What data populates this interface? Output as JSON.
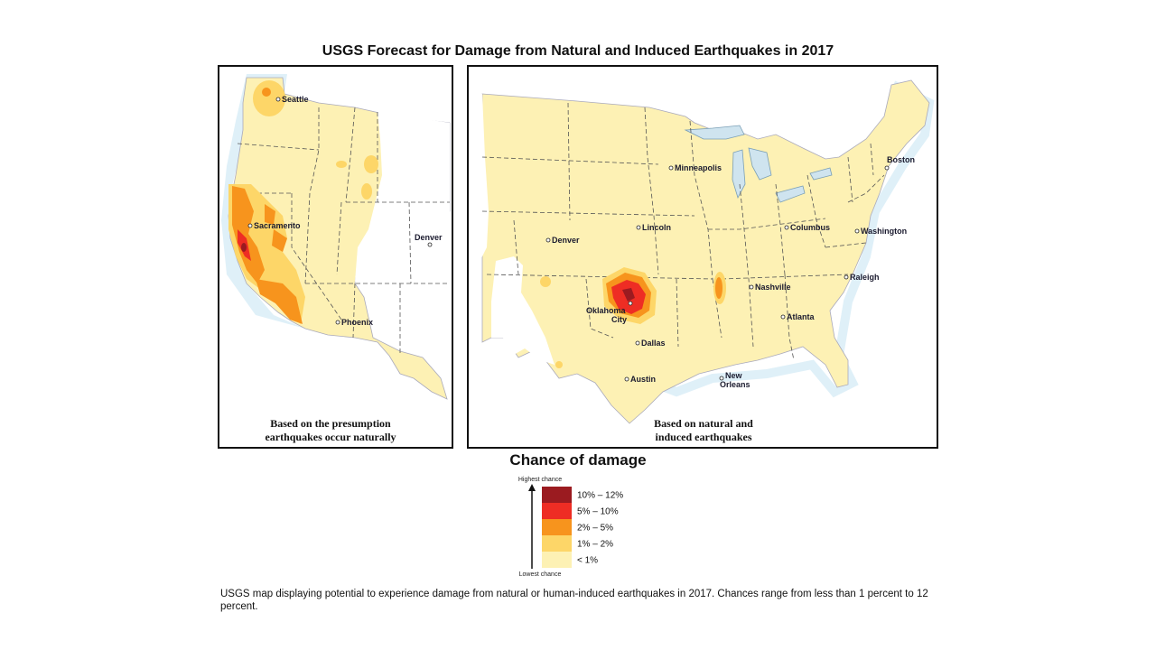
{
  "title": "USGS Forecast for Damage from Natural and Induced Earthquakes in 2017",
  "west_map": {
    "caption_line1": "Based on the presumption",
    "caption_line2": "earthquakes occur naturally",
    "cities": {
      "seattle": "Seattle",
      "sacramento": "Sacramento",
      "denver": "Denver",
      "phoenix": "Phoenix"
    }
  },
  "east_map": {
    "caption_line1": "Based on natural and",
    "caption_line2": "induced earthquakes",
    "cities": {
      "minneapolis": "Minneapolis",
      "boston": "Boston",
      "lincoln": "Lincoln",
      "columbus": "Columbus",
      "denver": "Denver",
      "washington": "Washington",
      "raleigh": "Raleigh",
      "nashville": "Nashville",
      "oklahoma_city_1": "Oklahoma",
      "oklahoma_city_2": "City",
      "atlanta": "Atlanta",
      "dallas": "Dallas",
      "austin": "Austin",
      "new_orleans_1": "New",
      "new_orleans_2": "Orleans"
    }
  },
  "legend": {
    "title": "Chance of damage",
    "highest": "Highest chance",
    "lowest": "Lowest chance",
    "classes": [
      {
        "label": "10% – 12%",
        "color": "#9b1b20"
      },
      {
        "label": "5% – 10%",
        "color": "#ee2d24"
      },
      {
        "label": "2% – 5%",
        "color": "#f7941d"
      },
      {
        "label": "1% – 2%",
        "color": "#fdd668"
      },
      {
        "label": "< 1%",
        "color": "#fdf1b4"
      }
    ]
  },
  "footnote": "USGS map displaying potential to experience damage from natural or human-induced earthquakes in 2017. Chances range from less than 1 percent to 12 percent."
}
